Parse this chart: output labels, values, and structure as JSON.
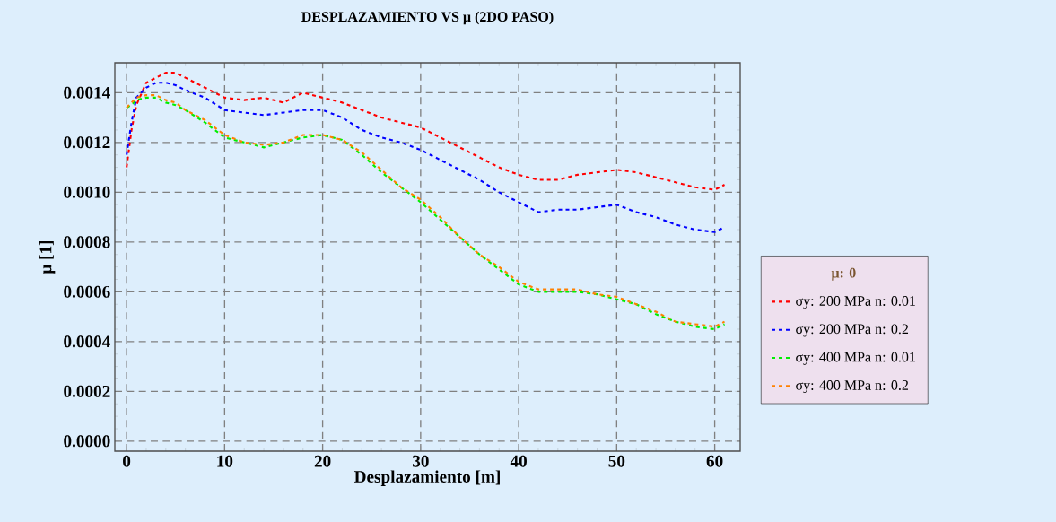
{
  "chart_data": {
    "type": "line",
    "title": "DESPLAZAMIENTO VS μ (2DO PASO)",
    "xlabel": "Desplazamiento [m]",
    "ylabel": "μ [1]",
    "legend_title": "μ: 0",
    "x": [
      0,
      0.5,
      1,
      2,
      3,
      4,
      5,
      6,
      8,
      10,
      12,
      14,
      16,
      18,
      20,
      22,
      24,
      26,
      28,
      30,
      32,
      34,
      36,
      38,
      40,
      42,
      44,
      46,
      48,
      50,
      52,
      54,
      56,
      58,
      60,
      61
    ],
    "series": [
      {
        "name": "σy: 200 MPa n: 0.01",
        "color": "#ff0000",
        "values": [
          0.0011,
          0.00125,
          0.00135,
          0.00144,
          0.00146,
          0.00148,
          0.00148,
          0.00146,
          0.00142,
          0.00138,
          0.00137,
          0.00138,
          0.00136,
          0.0014,
          0.00138,
          0.00136,
          0.00133,
          0.0013,
          0.00128,
          0.00126,
          0.00122,
          0.00118,
          0.00114,
          0.0011,
          0.00107,
          0.00105,
          0.00105,
          0.00107,
          0.00108,
          0.00109,
          0.00108,
          0.00106,
          0.00104,
          0.00102,
          0.00101,
          0.00103
        ]
      },
      {
        "name": "σy: 200 MPa n: 0.2",
        "color": "#0000ff",
        "values": [
          0.00115,
          0.00128,
          0.00138,
          0.00142,
          0.00144,
          0.00144,
          0.00143,
          0.00141,
          0.00138,
          0.00133,
          0.00132,
          0.00131,
          0.00132,
          0.00133,
          0.00133,
          0.0013,
          0.00125,
          0.00122,
          0.0012,
          0.00117,
          0.00113,
          0.00109,
          0.00105,
          0.001,
          0.00096,
          0.00092,
          0.00093,
          0.00093,
          0.00094,
          0.00095,
          0.00092,
          0.0009,
          0.00087,
          0.00085,
          0.00084,
          0.00086
        ]
      },
      {
        "name": "σy: 400 MPa n: 0.01",
        "color": "#00ee00",
        "values": [
          0.00134,
          0.00135,
          0.00137,
          0.00138,
          0.00138,
          0.00136,
          0.00135,
          0.00133,
          0.00128,
          0.00122,
          0.0012,
          0.00118,
          0.0012,
          0.00122,
          0.00123,
          0.00121,
          0.00115,
          0.00108,
          0.00102,
          0.00096,
          0.00089,
          0.00082,
          0.00075,
          0.00069,
          0.00063,
          0.0006,
          0.0006,
          0.0006,
          0.00059,
          0.00057,
          0.00055,
          0.00051,
          0.00048,
          0.00046,
          0.00045,
          0.00047
        ]
      },
      {
        "name": "σy: 400 MPa n: 0.2",
        "color": "#ff8000",
        "values": [
          0.00134,
          0.00136,
          0.00138,
          0.00139,
          0.00139,
          0.00137,
          0.00136,
          0.00133,
          0.00129,
          0.00123,
          0.0012,
          0.00119,
          0.0012,
          0.00123,
          0.00123,
          0.00121,
          0.00116,
          0.00109,
          0.00102,
          0.00097,
          0.0009,
          0.00082,
          0.00075,
          0.0007,
          0.00064,
          0.00061,
          0.00061,
          0.00061,
          0.00059,
          0.00058,
          0.00055,
          0.00052,
          0.00048,
          0.00047,
          0.00046,
          0.00048
        ]
      }
    ],
    "xlim": [
      -1.2,
      62.6
    ],
    "ylim": [
      -4e-05,
      0.00152
    ],
    "xticks": [
      0,
      10,
      20,
      30,
      40,
      50,
      60
    ],
    "yticks": [
      {
        "value": 0.0,
        "label": "0.0000"
      },
      {
        "value": 0.0002,
        "label": "0.0002"
      },
      {
        "value": 0.0004,
        "label": "0.0004"
      },
      {
        "value": 0.0006,
        "label": "0.0006"
      },
      {
        "value": 0.0008,
        "label": "0.0008"
      },
      {
        "value": 0.001,
        "label": "0.0010"
      },
      {
        "value": 0.0012,
        "label": "0.0012"
      },
      {
        "value": 0.0014,
        "label": "0.0014"
      }
    ],
    "grid": true,
    "legend": "right",
    "marker": "none",
    "line_style": "dashed"
  }
}
